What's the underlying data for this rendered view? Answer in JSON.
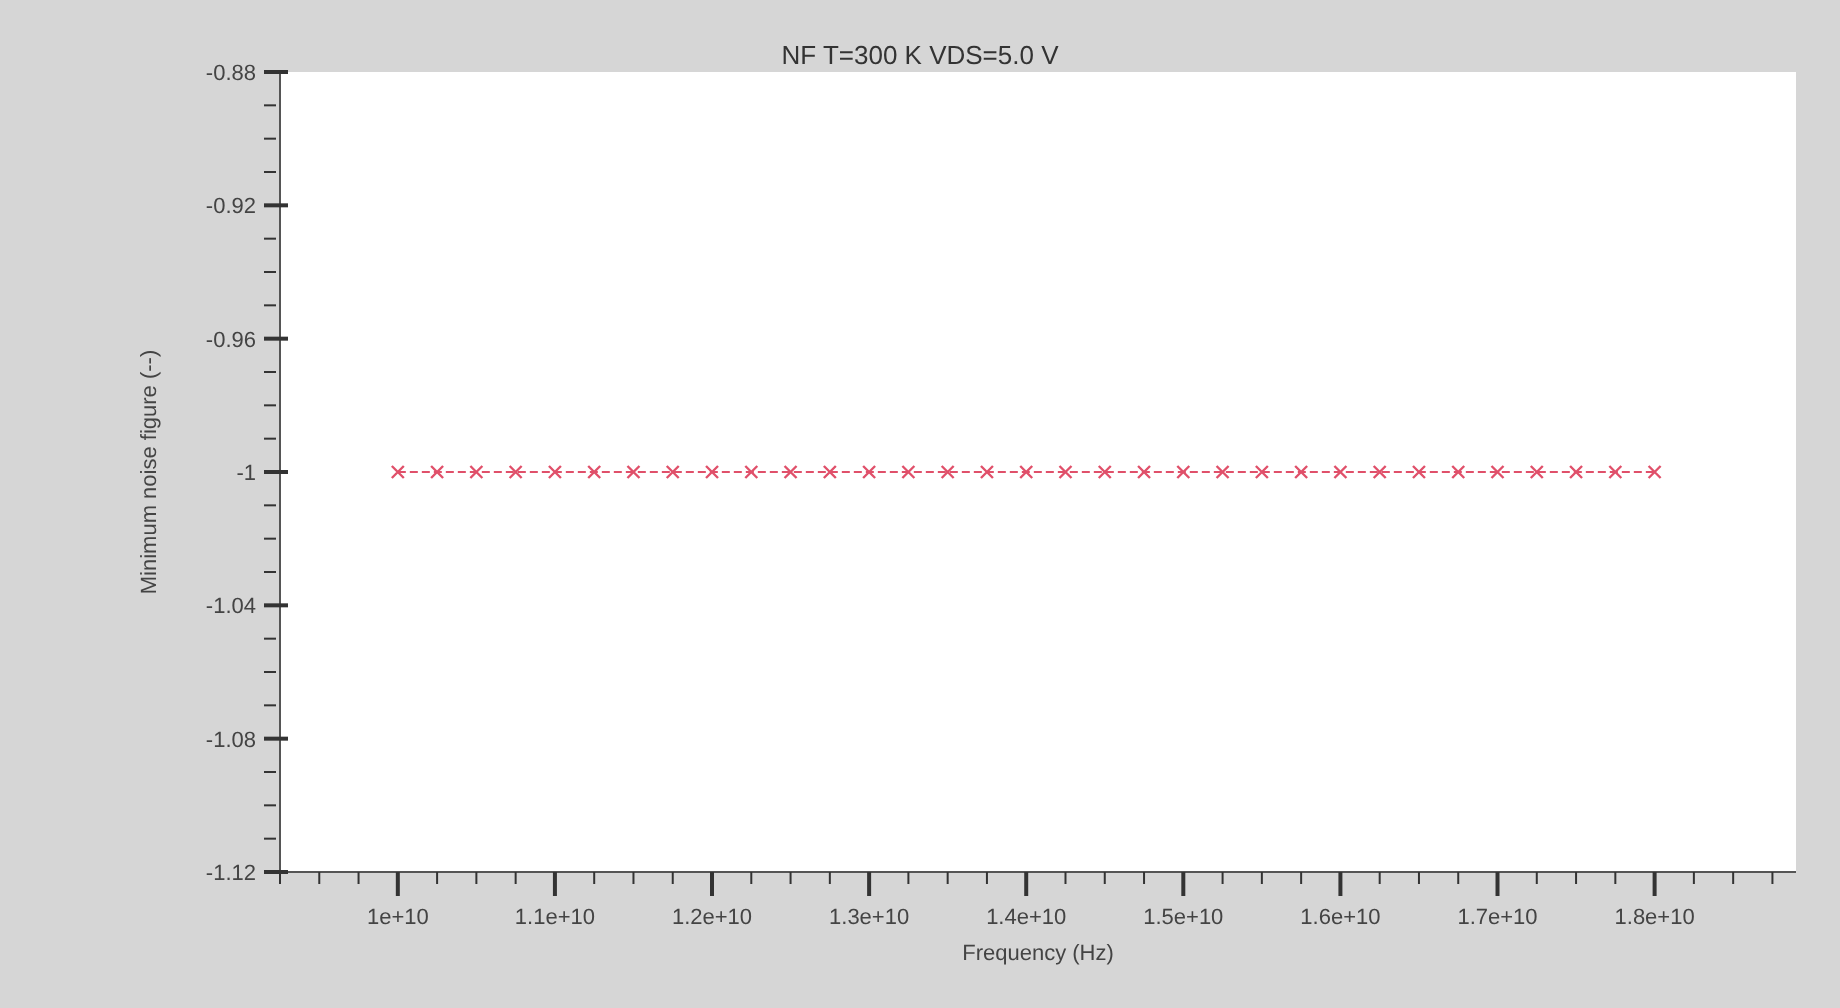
{
  "chart_data": {
    "type": "line",
    "title": "NF T=300 K VDS=5.0 V",
    "xlabel": "Frequency (Hz)",
    "ylabel": "Minimum noise figure (--)",
    "series": [
      {
        "color": "#e0506a",
        "marker": "cross",
        "line_style": "dashed",
        "x": [
          10000000000,
          10250000000,
          10500000000,
          10750000000,
          11000000000,
          11250000000,
          11500000000,
          11750000000,
          12000000000,
          12250000000,
          12500000000,
          12750000000,
          13000000000,
          13250000000,
          13500000000,
          13750000000,
          14000000000,
          14250000000,
          14500000000,
          14750000000,
          15000000000,
          15250000000,
          15500000000,
          15750000000,
          16000000000,
          16250000000,
          16500000000,
          16750000000,
          17000000000,
          17250000000,
          17500000000,
          17750000000,
          18000000000
        ],
        "values": [
          -1,
          -1,
          -1,
          -1,
          -1,
          -1,
          -1,
          -1,
          -1,
          -1,
          -1,
          -1,
          -1,
          -1,
          -1,
          -1,
          -1,
          -1,
          -1,
          -1,
          -1,
          -1,
          -1,
          -1,
          -1,
          -1,
          -1,
          -1,
          -1,
          -1,
          -1,
          -1,
          -1
        ]
      }
    ],
    "xlim": [
      9250000000,
      18900000000
    ],
    "xticks": [
      {
        "value": 9250000000,
        "label": null
      },
      {
        "value": 9500000000,
        "label": null
      },
      {
        "value": 9750000000,
        "label": null
      },
      {
        "value": 10000000000,
        "label": "1e+10"
      },
      {
        "value": 10250000000,
        "label": null
      },
      {
        "value": 10500000000,
        "label": null
      },
      {
        "value": 10750000000,
        "label": null
      },
      {
        "value": 11000000000,
        "label": "1.1e+10"
      },
      {
        "value": 11250000000,
        "label": null
      },
      {
        "value": 11500000000,
        "label": null
      },
      {
        "value": 11750000000,
        "label": null
      },
      {
        "value": 12000000000,
        "label": "1.2e+10"
      },
      {
        "value": 12250000000,
        "label": null
      },
      {
        "value": 12500000000,
        "label": null
      },
      {
        "value": 12750000000,
        "label": null
      },
      {
        "value": 13000000000,
        "label": "1.3e+10"
      },
      {
        "value": 13250000000,
        "label": null
      },
      {
        "value": 13500000000,
        "label": null
      },
      {
        "value": 13750000000,
        "label": null
      },
      {
        "value": 14000000000,
        "label": "1.4e+10"
      },
      {
        "value": 14250000000,
        "label": null
      },
      {
        "value": 14500000000,
        "label": null
      },
      {
        "value": 14750000000,
        "label": null
      },
      {
        "value": 15000000000,
        "label": "1.5e+10"
      },
      {
        "value": 15250000000,
        "label": null
      },
      {
        "value": 15500000000,
        "label": null
      },
      {
        "value": 15750000000,
        "label": null
      },
      {
        "value": 16000000000,
        "label": "1.6e+10"
      },
      {
        "value": 16250000000,
        "label": null
      },
      {
        "value": 16500000000,
        "label": null
      },
      {
        "value": 16750000000,
        "label": null
      },
      {
        "value": 17000000000,
        "label": "1.7e+10"
      },
      {
        "value": 17250000000,
        "label": null
      },
      {
        "value": 17500000000,
        "label": null
      },
      {
        "value": 17750000000,
        "label": null
      },
      {
        "value": 18000000000,
        "label": "1.8e+10"
      },
      {
        "value": 18250000000,
        "label": null
      },
      {
        "value": 18500000000,
        "label": null
      },
      {
        "value": 18750000000,
        "label": null
      }
    ],
    "ylim": [
      -1.12,
      -0.88
    ],
    "yticks": [
      -1.12,
      {
        "value": -1.11,
        "label": null
      },
      {
        "value": -1.1,
        "label": null
      },
      {
        "value": -1.09,
        "label": null
      },
      -1.08,
      {
        "value": -1.07,
        "label": null
      },
      {
        "value": -1.06,
        "label": null
      },
      {
        "value": -1.05,
        "label": null
      },
      -1.04,
      {
        "value": -1.03,
        "label": null
      },
      {
        "value": -1.02,
        "label": null
      },
      {
        "value": -1.01,
        "label": null
      },
      -1,
      {
        "value": -0.99,
        "label": null
      },
      {
        "value": -0.98,
        "label": null
      },
      {
        "value": -0.97,
        "label": null
      },
      -0.96,
      {
        "value": -0.95,
        "label": null
      },
      {
        "value": -0.94,
        "label": null
      },
      {
        "value": -0.93,
        "label": null
      },
      -0.92,
      {
        "value": -0.91,
        "label": null
      },
      {
        "value": -0.9,
        "label": null
      },
      {
        "value": -0.89,
        "label": null
      },
      -0.88
    ]
  }
}
